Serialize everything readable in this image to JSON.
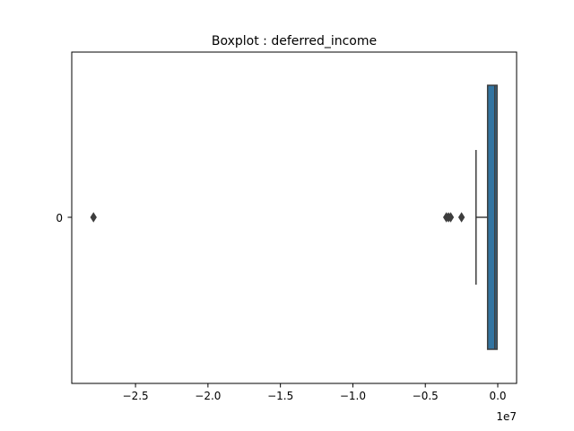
{
  "chart_data": {
    "type": "boxplot",
    "title": "Boxplot : deferred_income",
    "orientation": "horizontal",
    "categories": [
      "0"
    ],
    "x_ticks": [
      {
        "value": -25000000,
        "label": "−2.5"
      },
      {
        "value": -20000000,
        "label": "−2.0"
      },
      {
        "value": -15000000,
        "label": "−1.5"
      },
      {
        "value": -10000000,
        "label": "−1.0"
      },
      {
        "value": -5000000,
        "label": "−0.5"
      },
      {
        "value": 0,
        "label": "0.0"
      }
    ],
    "offset_label": "1e7",
    "xlim": [
      -29400000,
      1300000
    ],
    "box": {
      "lower_whisker": -1500000,
      "q1": -700000,
      "median": -200000,
      "q3": -50000,
      "upper_whisker": -50000
    },
    "outliers": [
      -27900000,
      -3550000,
      -3400000,
      -3250000,
      -2500000
    ],
    "colors": {
      "box": "#3274a1",
      "edge": "#3d3d3d"
    }
  }
}
